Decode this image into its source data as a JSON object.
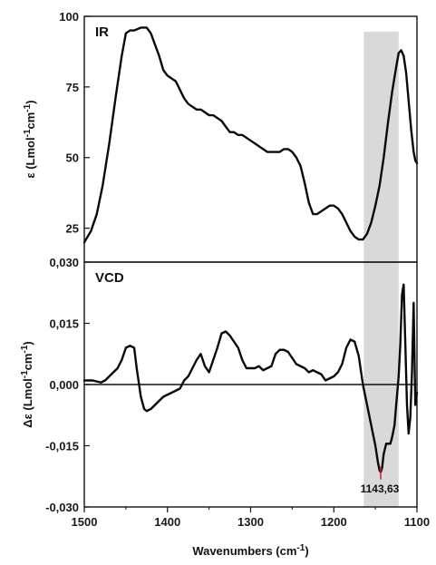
{
  "chart_data": [
    {
      "type": "line",
      "panel_label": "IR",
      "ylabel": "ε (Lmol-1cm-1)",
      "ylabel_parts": {
        "pre": "ε (Lmol",
        "sup1": "-1",
        "mid": "cm",
        "sup2": "-1",
        "post": ")"
      },
      "xlim": [
        1500,
        1100
      ],
      "ylim": [
        13,
        100
      ],
      "yticks": [
        25,
        50,
        75,
        100
      ],
      "yticklabels": [
        "25",
        "50",
        "75",
        "100"
      ],
      "highlight_band": [
        1164,
        1122
      ],
      "series": [
        {
          "x": [
            1500,
            1492,
            1485,
            1478,
            1470,
            1462,
            1455,
            1450,
            1445,
            1440,
            1432,
            1425,
            1420,
            1415,
            1410,
            1405,
            1400,
            1395,
            1390,
            1385,
            1380,
            1375,
            1370,
            1365,
            1360,
            1355,
            1350,
            1345,
            1340,
            1335,
            1330,
            1325,
            1320,
            1315,
            1310,
            1305,
            1300,
            1295,
            1290,
            1285,
            1280,
            1275,
            1270,
            1265,
            1260,
            1255,
            1250,
            1245,
            1240,
            1235,
            1230,
            1225,
            1220,
            1215,
            1210,
            1205,
            1200,
            1195,
            1190,
            1185,
            1180,
            1175,
            1170,
            1165,
            1160,
            1155,
            1150,
            1145,
            1140,
            1135,
            1130,
            1125,
            1122,
            1119,
            1116,
            1113,
            1110,
            1107,
            1104,
            1102,
            1100
          ],
          "y": [
            20,
            24,
            30,
            40,
            55,
            72,
            86,
            94,
            95,
            95,
            96,
            96,
            94,
            90,
            86,
            81,
            79,
            78,
            77,
            74,
            71,
            69,
            68,
            67,
            67,
            66,
            65,
            65,
            64,
            63,
            61,
            59,
            59,
            58,
            58,
            57,
            56,
            55,
            54,
            53,
            52,
            52,
            52,
            52,
            53,
            53,
            52,
            50,
            47,
            41,
            34,
            30,
            30,
            31,
            32,
            33,
            33,
            32,
            30,
            27,
            24,
            22,
            21,
            21,
            23,
            27,
            33,
            40,
            50,
            62,
            73,
            82,
            87,
            88,
            86,
            80,
            70,
            60,
            52,
            49,
            48
          ]
        }
      ]
    },
    {
      "type": "line",
      "panel_label": "VCD",
      "ylabel": "Δε (Lmol-1cm-1)",
      "ylabel_parts": {
        "pre": "Δε (Lmol",
        "sup1": "-1",
        "mid": "cm",
        "sup2": "-1",
        "post": ")"
      },
      "xlabel": "Wavenumbers (cm-1)",
      "xlabel_parts": {
        "pre": "Wavenumbers (cm",
        "sup": "-1",
        "post": ")"
      },
      "xlim": [
        1500,
        1100
      ],
      "xticks": [
        1500,
        1400,
        1300,
        1200,
        1100
      ],
      "xticklabels": [
        "1500",
        "1400",
        "1300",
        "1200",
        "1100"
      ],
      "ylim": [
        -0.03,
        0.03
      ],
      "yticks": [
        -0.03,
        -0.015,
        0,
        0.015,
        0.03
      ],
      "yticklabels": [
        "-0,030",
        "-0,015",
        "0,000",
        "0,015",
        "0,030"
      ],
      "highlight_band": [
        1164,
        1122
      ],
      "zero_line": true,
      "annotation": {
        "text": "1143,63",
        "x": 1143.63,
        "y": -0.0215,
        "color": "#e02020"
      },
      "series": [
        {
          "x": [
            1500,
            1490,
            1480,
            1475,
            1470,
            1465,
            1460,
            1455,
            1450,
            1445,
            1440,
            1437,
            1432,
            1428,
            1425,
            1420,
            1415,
            1410,
            1405,
            1400,
            1395,
            1390,
            1385,
            1380,
            1375,
            1370,
            1365,
            1360,
            1355,
            1350,
            1345,
            1340,
            1335,
            1330,
            1325,
            1320,
            1315,
            1310,
            1305,
            1300,
            1295,
            1290,
            1285,
            1280,
            1275,
            1270,
            1265,
            1260,
            1255,
            1250,
            1245,
            1240,
            1235,
            1230,
            1225,
            1220,
            1215,
            1210,
            1205,
            1200,
            1195,
            1190,
            1185,
            1180,
            1175,
            1170,
            1165,
            1160,
            1155,
            1150,
            1147,
            1145,
            1143.6,
            1142,
            1140,
            1137,
            1135,
            1132,
            1130,
            1127,
            1125,
            1122,
            1120,
            1118,
            1116,
            1114,
            1112,
            1110,
            1108,
            1106,
            1104,
            1102,
            1100
          ],
          "y": [
            0.001,
            0.001,
            0.0005,
            0.001,
            0.002,
            0.003,
            0.004,
            0.006,
            0.009,
            0.0095,
            0.009,
            0.004,
            -0.003,
            -0.006,
            -0.0065,
            -0.006,
            -0.005,
            -0.004,
            -0.003,
            -0.0025,
            -0.002,
            -0.0015,
            -0.001,
            0.001,
            0.002,
            0.004,
            0.006,
            0.0075,
            0.0045,
            0.003,
            0.006,
            0.009,
            0.0125,
            0.013,
            0.012,
            0.0105,
            0.009,
            0.006,
            0.004,
            0.004,
            0.004,
            0.0045,
            0.0035,
            0.004,
            0.0045,
            0.0075,
            0.0085,
            0.0085,
            0.008,
            0.0065,
            0.005,
            0.0045,
            0.004,
            0.003,
            0.0035,
            0.003,
            0.0025,
            0.001,
            0.0015,
            0.002,
            0.003,
            0.005,
            0.009,
            0.011,
            0.0105,
            0.007,
            0.0,
            -0.005,
            -0.01,
            -0.015,
            -0.019,
            -0.021,
            -0.0215,
            -0.0205,
            -0.017,
            -0.0145,
            -0.0145,
            -0.0145,
            -0.013,
            -0.01,
            -0.005,
            0.002,
            0.01,
            0.022,
            0.0245,
            0.01,
            -0.005,
            -0.012,
            -0.008,
            0.003,
            0.02,
            -0.005,
            -0.002
          ]
        }
      ]
    }
  ]
}
